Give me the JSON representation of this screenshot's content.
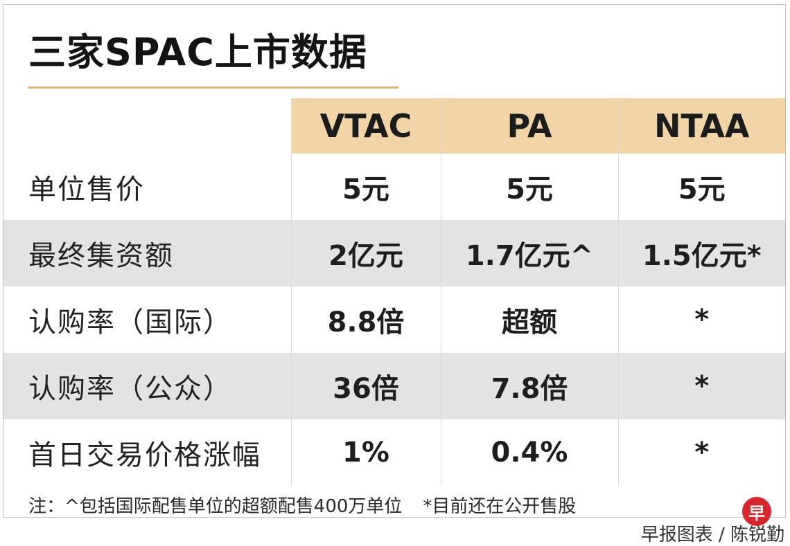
{
  "title": "三家SPAC上市数据",
  "columns": [
    "VTAC",
    "PA",
    "NTAA"
  ],
  "rows": [
    {
      "label": "单位售价",
      "values": [
        "5元",
        "5元",
        "5元"
      ]
    },
    {
      "label": "最终集资额",
      "values": [
        "2亿元",
        "1.7亿元^",
        "1.5亿元*"
      ]
    },
    {
      "label": "认购率（国际）",
      "values": [
        "8.8倍",
        "超额",
        "*"
      ]
    },
    {
      "label": "认购率（公众）",
      "values": [
        "36倍",
        "7.8倍",
        "*"
      ]
    },
    {
      "label": "首日交易价格涨幅",
      "values": [
        "1%",
        "0.4%",
        "*"
      ]
    }
  ],
  "notes": {
    "note1": "注：^包括国际配售单位的超额配售400万单位",
    "note2": "*目前还在公开售股"
  },
  "logo_text": "早",
  "credit": "早报图表 / 陈锐勤",
  "colors": {
    "header_bg": "#f2d5a6",
    "stripe_bg": "#e3e3e3",
    "title_rule": "#e0b36e",
    "logo_red": "#d7262e"
  }
}
